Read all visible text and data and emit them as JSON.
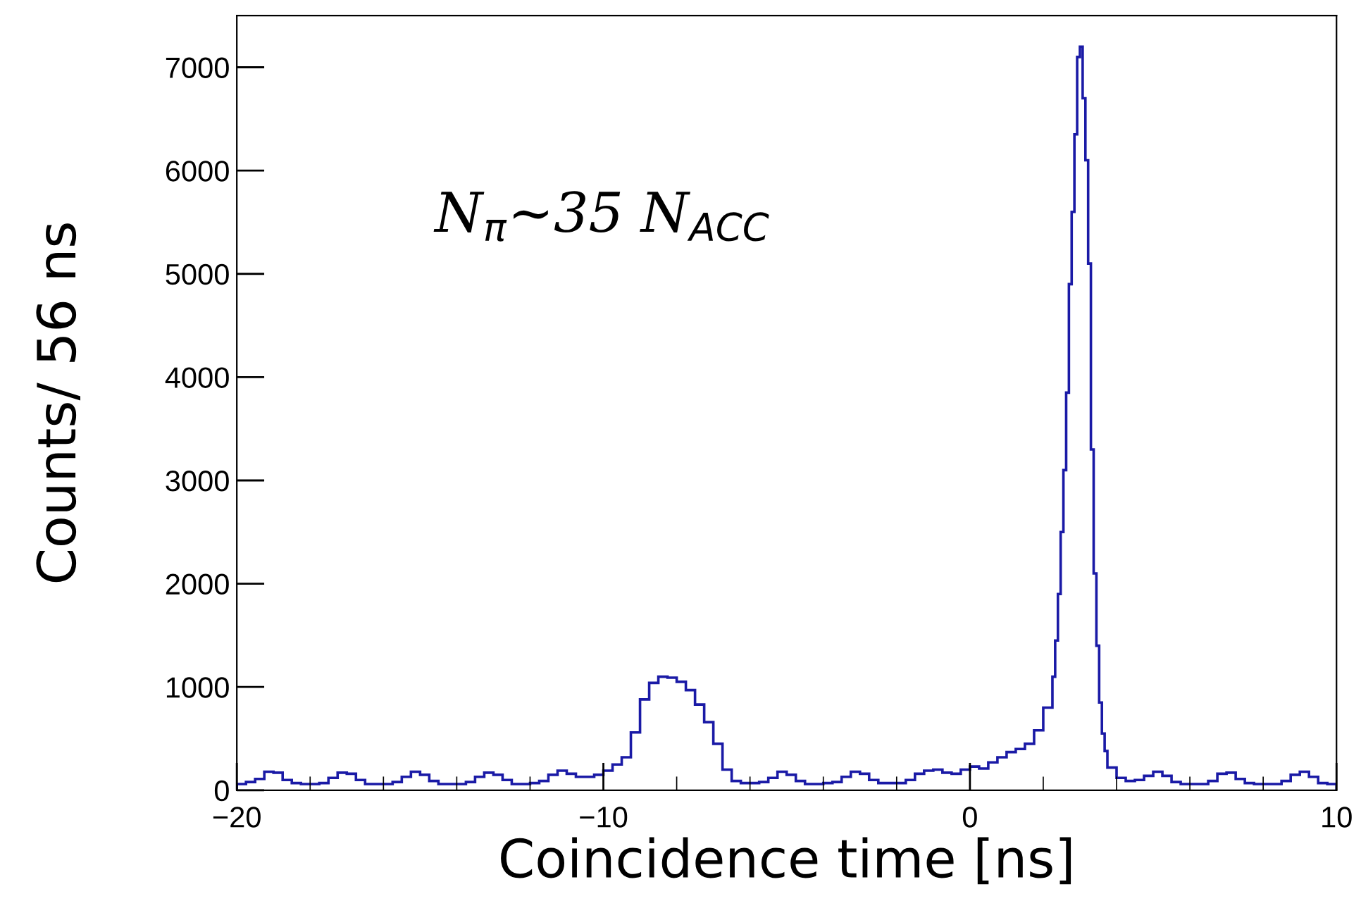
{
  "chart_data": {
    "type": "histogram",
    "xlabel": "Coincidence time [ns]",
    "ylabel": "Counts/ 56 ns",
    "annotations": [
      "N$_{π}$~35 N$_{ACC}$"
    ],
    "color": "#1a1aa6",
    "bins": [
      -20,
      -19.75,
      -19.5,
      -19.25,
      -19,
      -18.75,
      -18.5,
      -18.25,
      -18,
      -17.75,
      -17.5,
      -17.25,
      -17,
      -16.75,
      -16.5,
      -16.25,
      -16,
      -15.75,
      -15.5,
      -15.25,
      -15,
      -14.75,
      -14.5,
      -14.25,
      -14,
      -13.75,
      -13.5,
      -13.25,
      -13,
      -12.75,
      -12.5,
      -12.25,
      -12,
      -11.75,
      -11.5,
      -11.25,
      -11,
      -10.75,
      -10.5,
      -10.25,
      -10,
      -9.75,
      -9.5,
      -9.25,
      -9,
      -8.75,
      -8.5,
      -8.25,
      -8,
      -7.75,
      -7.5,
      -7.25,
      -7,
      -6.75,
      -6.5,
      -6.25,
      -6,
      -5.75,
      -5.5,
      -5.25,
      -5,
      -4.75,
      -4.5,
      -4.25,
      -4,
      -3.75,
      -3.5,
      -3.25,
      -3,
      -2.75,
      -2.5,
      -2.25,
      -2,
      -1.75,
      -1.5,
      -1.25,
      -1,
      -0.75,
      -0.5,
      -0.25,
      0,
      0.25,
      0.5,
      0.75,
      1,
      1.25,
      1.5,
      1.75,
      2,
      2.25,
      2.325,
      2.4,
      2.475,
      2.55,
      2.625,
      2.7,
      2.775,
      2.85,
      2.925,
      3,
      3.075,
      3.15,
      3.225,
      3.3,
      3.375,
      3.45,
      3.525,
      3.6,
      3.675,
      3.75,
      4,
      4.25,
      4.5,
      4.75,
      5,
      5.25,
      5.5,
      5.75,
      6,
      6.25,
      6.5,
      6.75,
      7,
      7.25,
      7.5,
      7.75,
      8,
      8.25,
      8.5,
      8.75,
      9,
      9.25,
      9.5,
      9.75,
      10
    ],
    "values": [
      60,
      80,
      110,
      180,
      170,
      100,
      70,
      60,
      60,
      70,
      120,
      170,
      160,
      100,
      60,
      60,
      60,
      80,
      130,
      180,
      150,
      90,
      60,
      60,
      60,
      80,
      130,
      170,
      150,
      100,
      60,
      60,
      70,
      90,
      150,
      190,
      160,
      130,
      130,
      150,
      190,
      250,
      320,
      560,
      880,
      1040,
      1100,
      1090,
      1050,
      970,
      830,
      660,
      450,
      200,
      90,
      70,
      70,
      80,
      120,
      180,
      150,
      90,
      60,
      60,
      70,
      80,
      130,
      180,
      160,
      100,
      70,
      70,
      70,
      100,
      160,
      190,
      200,
      170,
      160,
      200,
      230,
      210,
      270,
      320,
      370,
      400,
      450,
      580,
      800,
      1100,
      1450,
      1900,
      2500,
      3100,
      3850,
      4900,
      5600,
      6350,
      7100,
      7200,
      6700,
      6100,
      5100,
      3300,
      2100,
      1400,
      850,
      550,
      380,
      220,
      120,
      90,
      100,
      140,
      180,
      140,
      80,
      60,
      60,
      60,
      90,
      160,
      170,
      110,
      70,
      60,
      60,
      60,
      90,
      150,
      180,
      130,
      70,
      60
    ],
    "xlim": [
      -20,
      10
    ],
    "xticks": [
      {
        "value": -20,
        "label": "−20"
      },
      {
        "value": -10,
        "label": "−10"
      },
      0,
      10
    ],
    "ylim": [
      0,
      7500
    ],
    "yticks": [
      0,
      1000,
      2000,
      3000,
      4000,
      5000,
      6000,
      7000
    ],
    "grid": false,
    "legend": false
  }
}
